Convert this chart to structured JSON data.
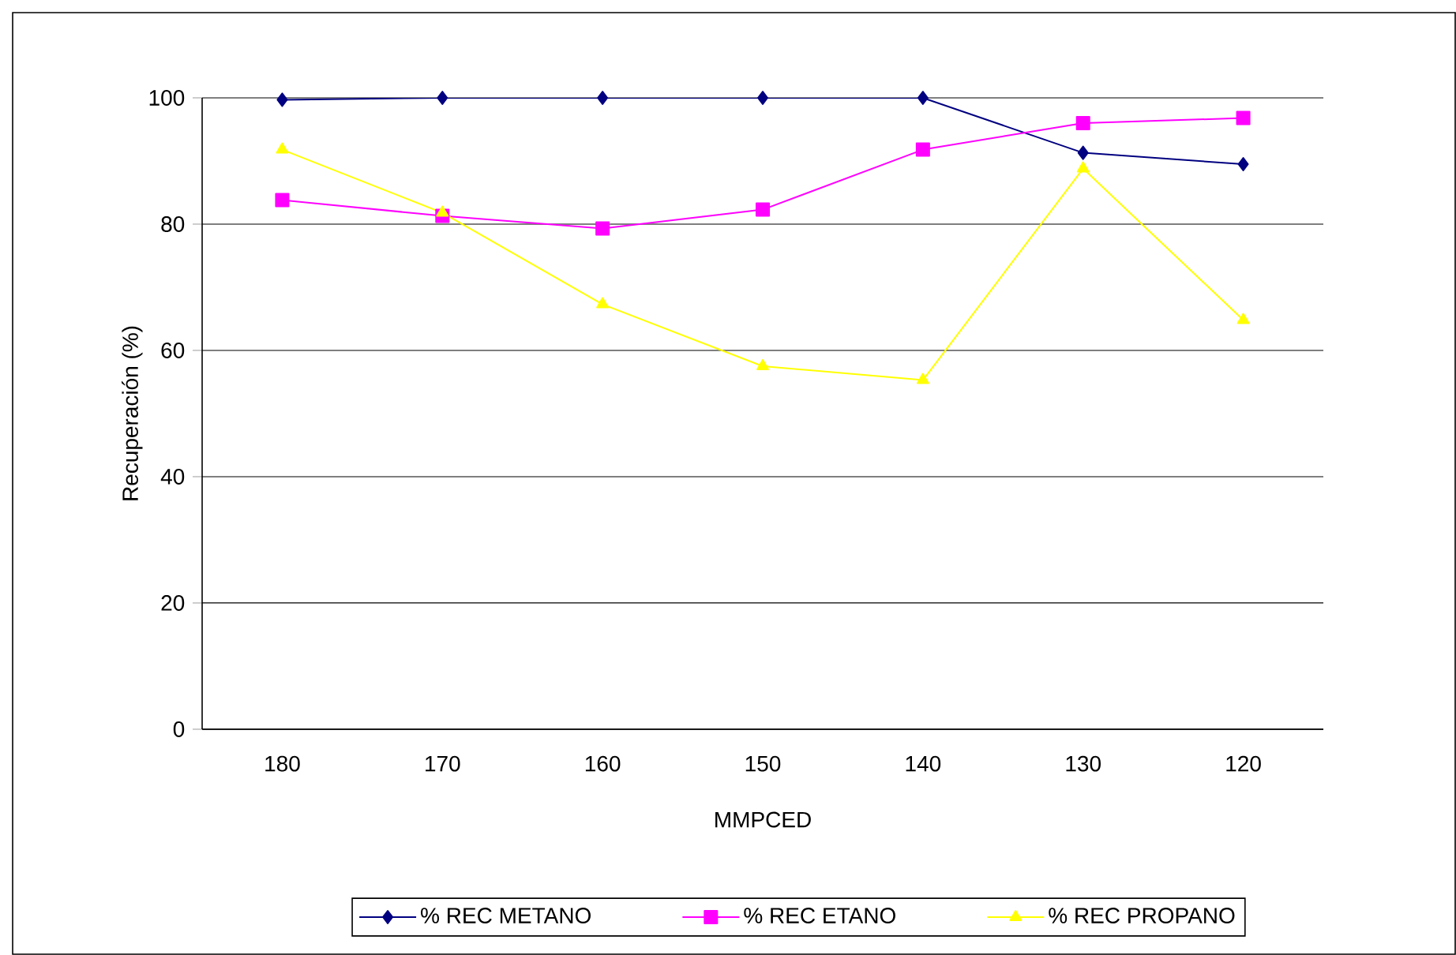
{
  "chart_data": {
    "type": "line",
    "xlabel": "MMPCED",
    "ylabel": "Recuperación (%)",
    "categories": [
      "180",
      "170",
      "160",
      "150",
      "140",
      "130",
      "120"
    ],
    "series": [
      {
        "name": "% REC METANO",
        "color": "#000080",
        "marker": "diamond",
        "values": [
          99.7,
          100,
          100,
          100,
          100,
          91.3,
          89.5
        ]
      },
      {
        "name": "% REC ETANO",
        "color": "#ff00ff",
        "marker": "square",
        "values": [
          83.8,
          81.3,
          79.3,
          82.3,
          91.8,
          96,
          96.8
        ]
      },
      {
        "name": "% REC PROPANO",
        "color": "#ffff00",
        "marker": "triangle",
        "values": [
          91.8,
          81.8,
          67.3,
          57.5,
          55.3,
          88.8,
          64.8
        ]
      }
    ],
    "ylim": [
      0,
      100
    ],
    "yticks": [
      0,
      20,
      40,
      60,
      80,
      100
    ],
    "grid": "y",
    "legend": "bottom",
    "line_style": "solid"
  }
}
